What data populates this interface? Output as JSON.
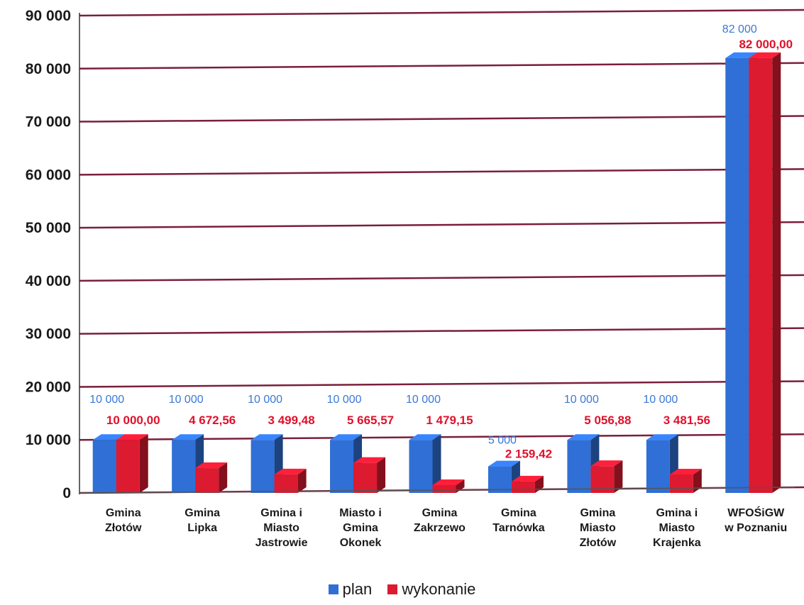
{
  "colors": {
    "plan": "#2f6fd6",
    "wykonanie": "#dc1a30",
    "gridline": "#7a1f3a",
    "plan_label": "#3a78d8",
    "wykonanie_label": "#e0112b"
  },
  "chart_data": {
    "type": "bar",
    "title": "",
    "xlabel": "",
    "ylabel": "",
    "ylim": [
      0,
      90000
    ],
    "yticks": [
      "0",
      "10 000",
      "20 000",
      "30 000",
      "40 000",
      "50 000",
      "60 000",
      "70 000",
      "80 000",
      "90 000"
    ],
    "grid": true,
    "legend_position": "bottom",
    "categories": [
      [
        "Gmina",
        "Złotów"
      ],
      [
        "Gmina",
        "Lipka"
      ],
      [
        "Gmina i",
        "Miasto",
        "Jastrowie"
      ],
      [
        "Miasto i",
        "Gmina",
        "Okonek"
      ],
      [
        "Gmina",
        "Zakrzewo"
      ],
      [
        "Gmina",
        "Tarnówka"
      ],
      [
        "Gmina",
        "Miasto",
        "Złotów"
      ],
      [
        "Gmina i",
        "Miasto",
        "Krajenka"
      ],
      [
        "WFOŚiGW",
        "w Poznaniu"
      ]
    ],
    "series": [
      {
        "name": "plan",
        "values": [
          10000,
          10000,
          10000,
          10000,
          10000,
          5000,
          10000,
          10000,
          82000
        ],
        "labels": [
          "10 000",
          "10 000",
          "10 000",
          "10 000",
          "10 000",
          "5 000",
          "10 000",
          "10 000",
          "82 000"
        ]
      },
      {
        "name": "wykonanie",
        "values": [
          10000.0,
          4672.56,
          3499.48,
          5665.57,
          1479.15,
          2159.42,
          5056.88,
          3481.56,
          82000.0
        ],
        "labels": [
          "10 000,00",
          "4 672,56",
          "3 499,48",
          "5 665,57",
          "1 479,15",
          "2 159,42",
          "5 056,88",
          "3 481,56",
          "82 000,00"
        ]
      }
    ]
  }
}
